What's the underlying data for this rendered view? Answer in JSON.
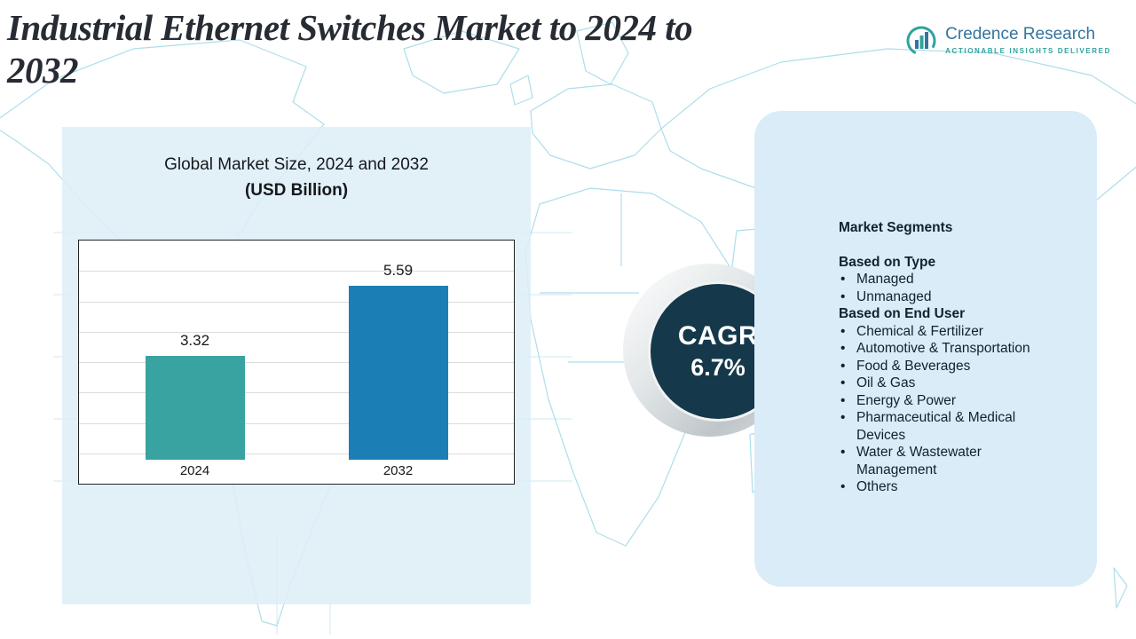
{
  "header": {
    "title": "Industrial Ethernet Switches Market to 2024 to 2032",
    "title_lines": [
      "Industrial Ethernet Switches Market to 2024 to",
      "2032"
    ]
  },
  "brand": {
    "name": "Credence Research",
    "tagline": "Actionable Insights Delivered"
  },
  "chart_data": {
    "type": "bar",
    "title": "Global Market Size, 2024 and 2032",
    "subtitle": "(USD Billion)",
    "categories": [
      "2024",
      "2032"
    ],
    "values": [
      3.32,
      5.59
    ],
    "unit": "USD Billion",
    "xlabel": "",
    "ylabel": "",
    "ylim": [
      0,
      7
    ],
    "grid": true,
    "legend": "none",
    "bar_colors": [
      "#38a3a0",
      "#1b7fb5"
    ]
  },
  "cagr": {
    "label": "CAGR",
    "value": "6.7%"
  },
  "segments": {
    "title": "Market Segments",
    "bullet": "•",
    "groups": [
      {
        "heading": "Based on Type",
        "items": [
          "Managed",
          "Unmanaged"
        ]
      },
      {
        "heading": "Based on End User",
        "items": [
          "Chemical & Fertilizer",
          "Automotive & Transportation",
          "Food & Beverages",
          "Oil & Gas",
          "Energy & Power",
          "Pharmaceutical & Medical Devices",
          "Water & Wastewater Management",
          "Others"
        ]
      }
    ]
  },
  "colors": {
    "bar_2024": "#38a3a0",
    "bar_2032": "#1b7fb5",
    "cagr_circle": "#15384a",
    "panel_background": "#d9ecf7",
    "map_outline": "#a2d9e9",
    "brand_blue": "#33759e",
    "brand_teal": "#2fa3a0"
  }
}
